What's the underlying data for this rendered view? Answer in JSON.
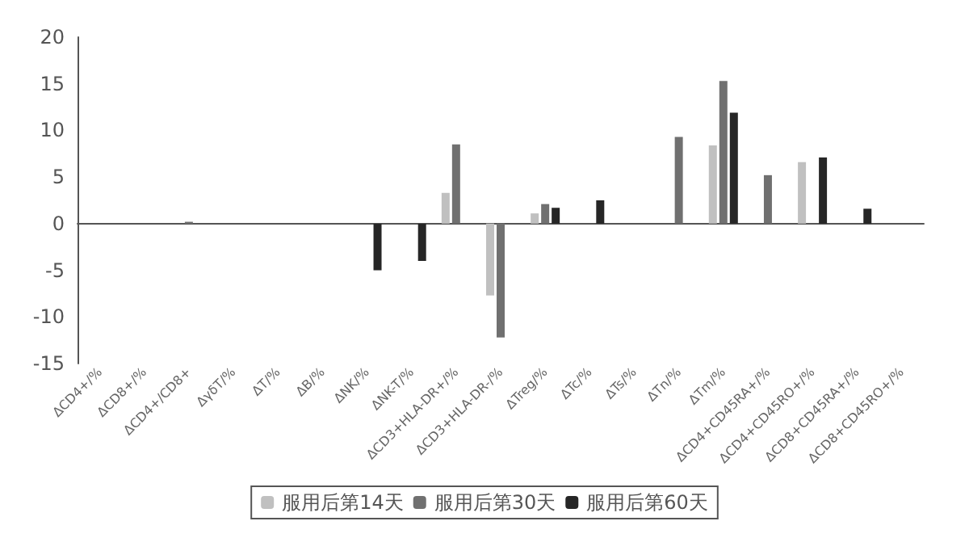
{
  "chart_data": {
    "type": "bar",
    "categories": [
      "ΔCD4+/%",
      "ΔCD8+/%",
      "ΔCD4+/CD8+",
      "ΔγδT/%",
      "ΔT/%",
      "ΔB/%",
      "ΔNK/%",
      "ΔNK-T/%",
      "ΔCD3+HLA-DR+/%",
      "ΔCD3+HLA-DR-/%",
      "ΔTreg/%",
      "ΔTc/%",
      "ΔTs/%",
      "ΔTn/%",
      "ΔTm/%",
      "ΔCD4+CD45RA+/%",
      "ΔCD4+CD45RO+/%",
      "ΔCD8+CD45RA+/%",
      "ΔCD8+CD45RO+/%"
    ],
    "series": [
      {
        "name": "服用后第14天",
        "color": "#c0c0c0",
        "values": [
          0,
          0,
          0,
          0,
          0,
          0,
          0,
          0,
          3.3,
          -7.7,
          1.1,
          0,
          0,
          0,
          8.4,
          0,
          6.6,
          0,
          0
        ]
      },
      {
        "name": "服用后第30天",
        "color": "#707070",
        "values": [
          0,
          0,
          0.2,
          0,
          0,
          0,
          0,
          0,
          8.5,
          -12.2,
          2.1,
          0,
          0,
          9.3,
          15.3,
          5.2,
          0,
          0,
          0
        ]
      },
      {
        "name": "服用后第60天",
        "color": "#262626",
        "values": [
          0,
          0,
          0,
          0,
          0,
          0,
          -5,
          -4,
          0,
          0,
          1.7,
          2.5,
          0,
          0,
          11.9,
          0,
          7.1,
          1.6,
          0
        ]
      }
    ],
    "ylim": [
      -15,
      20
    ],
    "yticks": [
      -15,
      -10,
      -5,
      0,
      5,
      10,
      15,
      20
    ],
    "legend": "bottom"
  }
}
